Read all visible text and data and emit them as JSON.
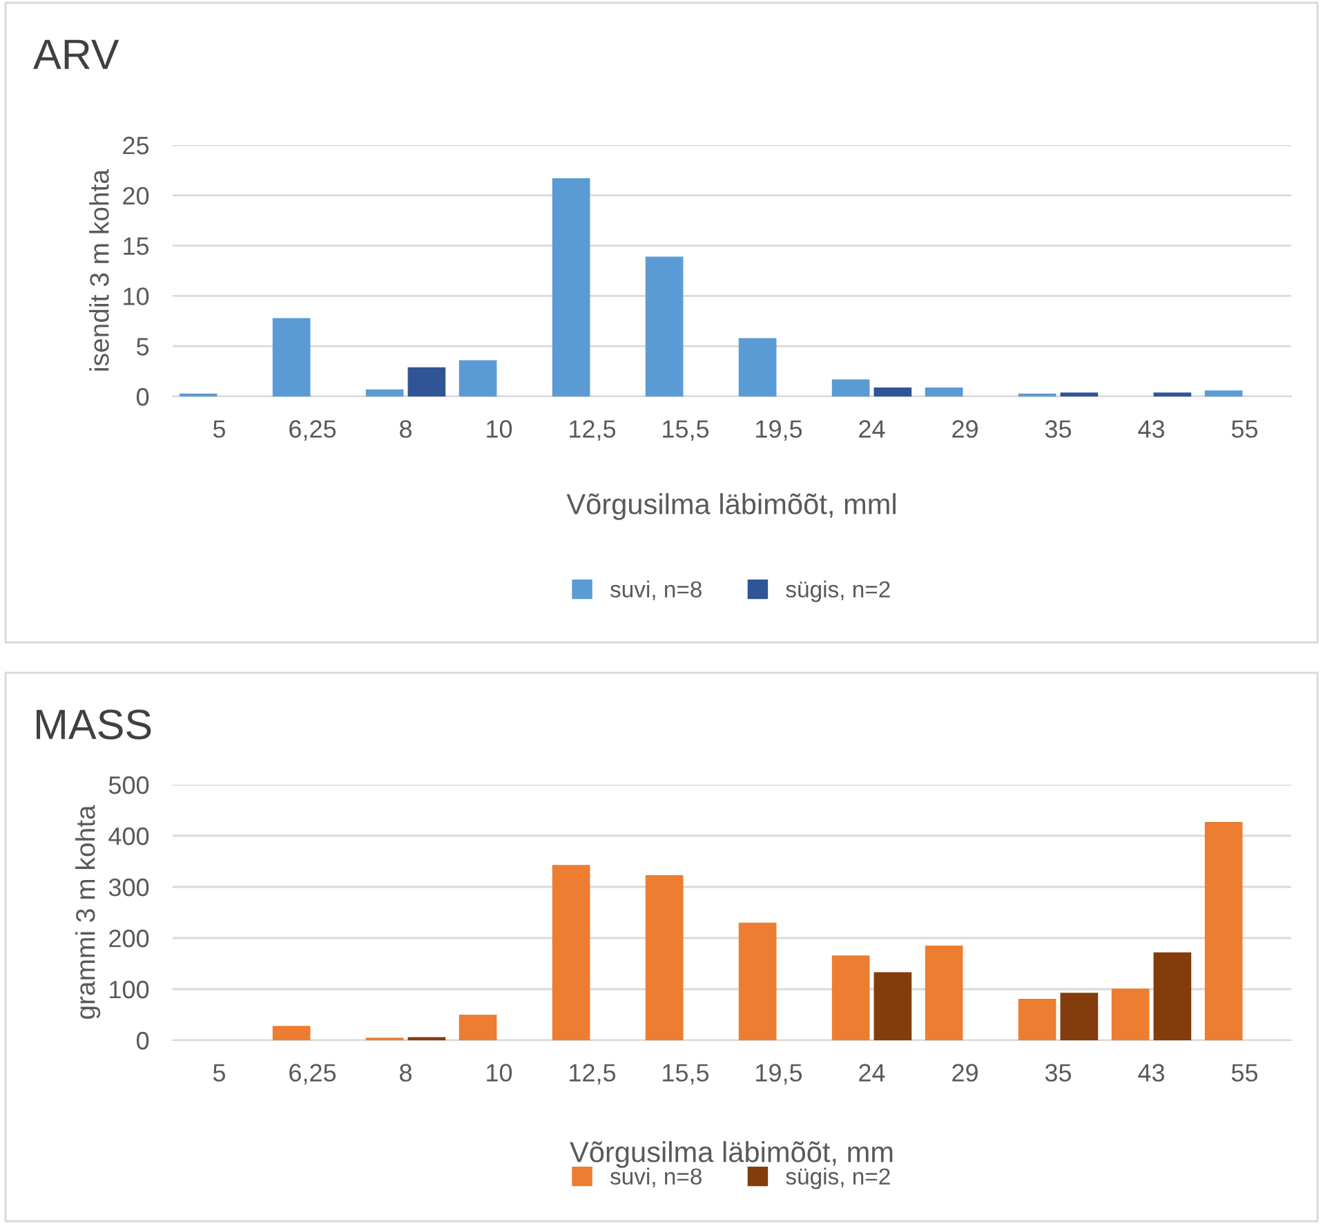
{
  "chart_data": [
    {
      "type": "bar",
      "title": "ARV",
      "ylabel": "isendit 3 m kohta",
      "xlabel": "Võrgusilma läbimõõt, mml",
      "categories": [
        "5",
        "6,25",
        "8",
        "10",
        "12,5",
        "15,5",
        "19,5",
        "24",
        "29",
        "35",
        "43",
        "55"
      ],
      "series": [
        {
          "name": "suvi, n=8",
          "color": "#5b9bd5",
          "values": [
            0.3,
            7.8,
            0.7,
            3.6,
            21.7,
            13.9,
            5.8,
            1.7,
            0.9,
            0.3,
            null,
            0.6
          ]
        },
        {
          "name": "sügis, n=2",
          "color": "#2f5597",
          "values": [
            null,
            null,
            2.9,
            null,
            null,
            null,
            null,
            0.9,
            null,
            0.4,
            0.4,
            null
          ]
        }
      ],
      "ylim": [
        0,
        25
      ],
      "yticks": [
        0,
        5,
        10,
        15,
        20,
        25
      ],
      "grid": "y",
      "legend": "bottom"
    },
    {
      "type": "bar",
      "title": "MASS",
      "ylabel": "grammi 3 m kohta",
      "xlabel": "Võrgusilma läbimõõt, mm",
      "categories": [
        "5",
        "6,25",
        "8",
        "10",
        "12,5",
        "15,5",
        "19,5",
        "24",
        "29",
        "35",
        "43",
        "55"
      ],
      "series": [
        {
          "name": "suvi, n=8",
          "color": "#ed7d31",
          "values": [
            null,
            28,
            5,
            50,
            343,
            323,
            230,
            166,
            185,
            81,
            101,
            427
          ]
        },
        {
          "name": "sügis, n=2",
          "color": "#843c0c",
          "values": [
            null,
            null,
            6,
            null,
            null,
            null,
            null,
            133,
            null,
            93,
            172,
            null
          ]
        }
      ],
      "ylim": [
        0,
        500
      ],
      "yticks": [
        0,
        100,
        200,
        300,
        400,
        500
      ],
      "grid": "y",
      "legend": "bottom"
    }
  ]
}
